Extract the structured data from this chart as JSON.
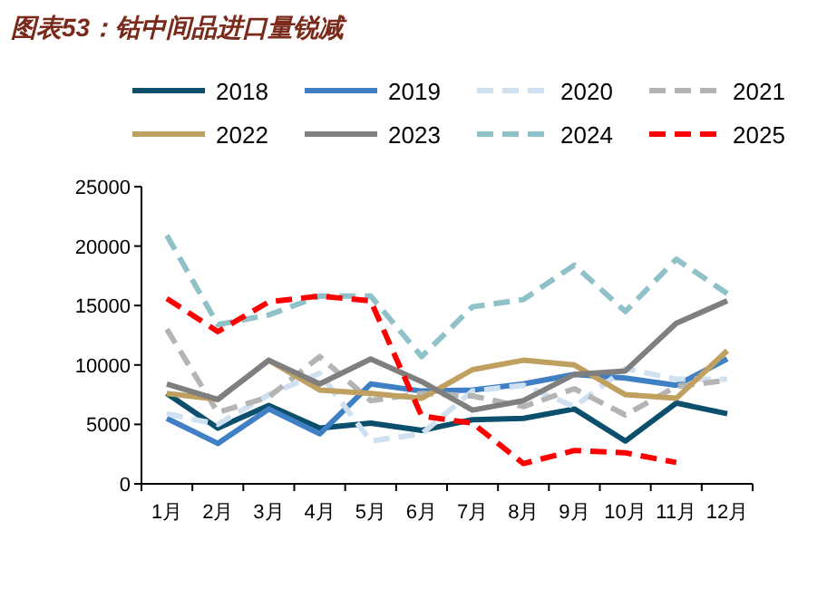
{
  "chart_data": {
    "type": "line",
    "title": "图表53：钴中间品进口量锐减",
    "categories": [
      "1月",
      "2月",
      "3月",
      "4月",
      "5月",
      "6月",
      "7月",
      "8月",
      "9月",
      "10月",
      "11月",
      "12月"
    ],
    "ylim": [
      0,
      25000
    ],
    "yticks": [
      0,
      5000,
      10000,
      15000,
      20000,
      25000
    ],
    "grid": false,
    "legend": "top",
    "series": [
      {
        "name": "2018",
        "color": "#0b4f6c",
        "values": [
          7600,
          4700,
          6600,
          4700,
          5100,
          4500,
          5400,
          5500,
          6300,
          3600,
          6800,
          5900
        ]
      },
      {
        "name": "2019",
        "color": "#3f7fc4",
        "values": [
          5500,
          3400,
          6300,
          4200,
          8400,
          7800,
          7900,
          8400,
          9200,
          8900,
          8300,
          10500
        ]
      },
      {
        "name": "2020",
        "color": "#cfe0f1",
        "line_style": "dashed",
        "values": [
          5900,
          5000,
          7500,
          9300,
          3600,
          4200,
          7800,
          8300,
          6500,
          9700,
          8800,
          8800
        ]
      },
      {
        "name": "2021",
        "color": "#b4b4b4",
        "line_style": "dashed",
        "values": [
          13000,
          6000,
          7300,
          10700,
          7000,
          7600,
          7400,
          6500,
          8000,
          5800,
          8200,
          8700
        ]
      },
      {
        "name": "2022",
        "color": "#c0a060",
        "values": [
          7600,
          7100,
          10400,
          7900,
          7600,
          7200,
          9600,
          10400,
          10000,
          7500,
          7200,
          11200
        ]
      },
      {
        "name": "2023",
        "color": "#7f7f7f",
        "values": [
          8400,
          7100,
          10400,
          8400,
          10500,
          8600,
          6200,
          7000,
          9200,
          9500,
          13500,
          15400
        ]
      },
      {
        "name": "2024",
        "color": "#8fc1c8",
        "line_style": "dashed",
        "values": [
          20900,
          13400,
          14200,
          15800,
          15800,
          10700,
          14900,
          15500,
          18400,
          14500,
          18900,
          16000
        ]
      },
      {
        "name": "2025",
        "color": "#ff0000",
        "line_style": "dashed",
        "values": [
          15600,
          12800,
          15300,
          15800,
          15400,
          5700,
          5100,
          1700,
          2800,
          2600,
          1800,
          null
        ]
      }
    ]
  }
}
